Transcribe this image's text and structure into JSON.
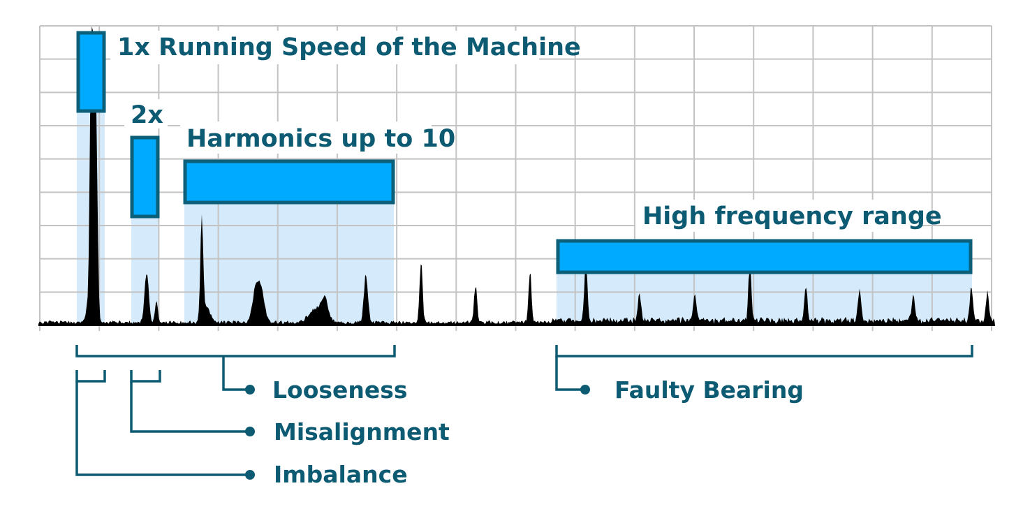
{
  "annotations": {
    "running_speed": "1x Running Speed of the Machine",
    "second_harmonic": "2x",
    "harmonics": "Harmonics up to 10",
    "high_frequency": "High frequency range"
  },
  "faults": {
    "looseness": "Looseness",
    "misalignment": "Misalignment",
    "imbalance": "Imbalance",
    "faulty_bearing": "Faulty Bearing"
  },
  "colors": {
    "highlight": "#00aaff",
    "band": "#d5eafb",
    "outline": "#0b5f78",
    "text": "#0d5a73",
    "spectrum": "#000000",
    "grid": "#c3c3c3"
  }
}
